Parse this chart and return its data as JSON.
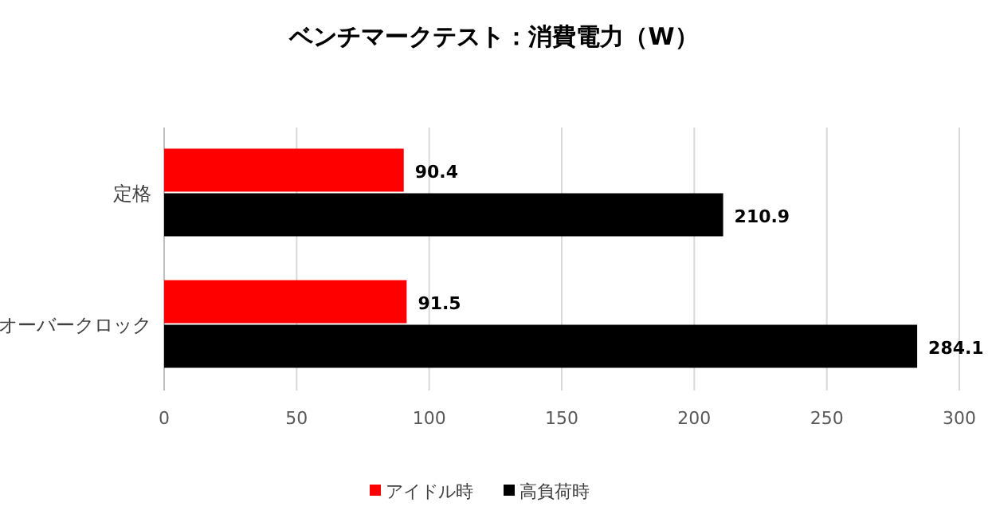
{
  "chart_data": {
    "type": "bar",
    "orientation": "horizontal",
    "title": "ベンチマークテスト：消費電力（W）",
    "categories": [
      "定格",
      "オーバークロック"
    ],
    "series": [
      {
        "name": "アイドル時",
        "color": "#ff0000",
        "values": [
          90.4,
          91.5
        ]
      },
      {
        "name": "高負荷時",
        "color": "#000000",
        "values": [
          210.9,
          284.1
        ]
      }
    ],
    "xlim": [
      0,
      300
    ],
    "xticks": [
      0,
      50,
      100,
      150,
      200,
      250,
      300
    ],
    "grid": "x",
    "legend": "bottom",
    "data_labels": true
  }
}
